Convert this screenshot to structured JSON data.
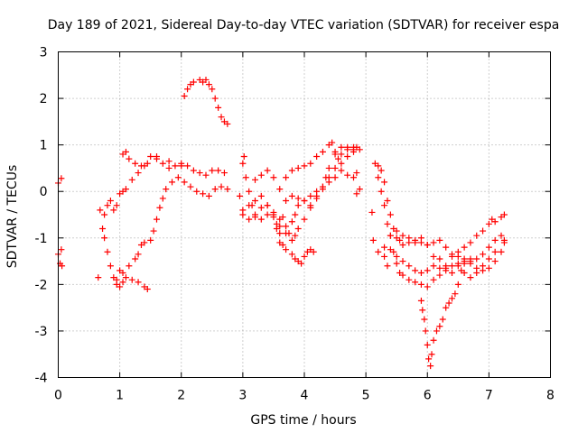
{
  "chart_data": {
    "type": "scatter",
    "title": "Day 189 of 2021, Sidereal Day-to-day VTEC variation (SDTVAR) for receiver espa",
    "xlabel": "GPS time / hours",
    "ylabel": "SDTVAR / TECUs",
    "xlim": [
      0,
      8
    ],
    "ylim": [
      -4,
      3
    ],
    "xticks": [
      "0",
      "1",
      "2",
      "3",
      "4",
      "5",
      "6",
      "7",
      "8"
    ],
    "yticks": [
      "-4",
      "-3",
      "-2",
      "-1",
      "0",
      "1",
      "2",
      "3"
    ],
    "grid": true,
    "marker": "+",
    "color": "#ff0000",
    "series": [
      {
        "points": [
          [
            0.0,
            0.18
          ],
          [
            0.05,
            0.28
          ],
          [
            0.0,
            -1.35
          ],
          [
            0.03,
            -1.55
          ],
          [
            0.05,
            -1.25
          ],
          [
            0.06,
            -1.6
          ],
          [
            0.65,
            -1.85
          ],
          [
            0.68,
            -0.4
          ],
          [
            0.72,
            -0.8
          ],
          [
            0.75,
            -1.0
          ],
          [
            0.8,
            -1.3
          ],
          [
            0.85,
            -1.6
          ],
          [
            0.9,
            -1.85
          ],
          [
            0.95,
            -2.0
          ],
          [
            1.0,
            -2.05
          ],
          [
            1.05,
            -1.95
          ],
          [
            1.1,
            -1.85
          ],
          [
            1.2,
            -1.9
          ],
          [
            1.3,
            -1.95
          ],
          [
            1.4,
            -2.05
          ],
          [
            1.45,
            -2.1
          ],
          [
            0.75,
            -0.5
          ],
          [
            0.8,
            -0.3
          ],
          [
            0.85,
            -0.2
          ],
          [
            0.9,
            -0.4
          ],
          [
            0.95,
            -0.3
          ],
          [
            1.0,
            -0.05
          ],
          [
            1.05,
            0.0
          ],
          [
            1.1,
            0.05
          ],
          [
            1.2,
            0.25
          ],
          [
            1.3,
            0.4
          ],
          [
            1.4,
            0.55
          ],
          [
            1.5,
            0.75
          ],
          [
            1.6,
            0.75
          ],
          [
            1.7,
            0.6
          ],
          [
            1.8,
            0.5
          ],
          [
            1.9,
            0.55
          ],
          [
            2.0,
            0.6
          ],
          [
            2.1,
            0.55
          ],
          [
            2.2,
            0.45
          ],
          [
            2.3,
            0.4
          ],
          [
            2.4,
            0.35
          ],
          [
            2.5,
            0.45
          ],
          [
            2.6,
            0.45
          ],
          [
            2.7,
            0.4
          ],
          [
            1.05,
            0.8
          ],
          [
            1.1,
            0.85
          ],
          [
            1.15,
            0.7
          ],
          [
            1.25,
            0.6
          ],
          [
            1.35,
            0.55
          ],
          [
            1.45,
            0.6
          ],
          [
            1.6,
            0.7
          ],
          [
            1.8,
            0.65
          ],
          [
            2.0,
            0.55
          ],
          [
            0.95,
            -1.9
          ],
          [
            1.0,
            -1.7
          ],
          [
            1.05,
            -1.75
          ],
          [
            1.15,
            -1.6
          ],
          [
            1.25,
            -1.45
          ],
          [
            1.3,
            -1.35
          ],
          [
            1.35,
            -1.15
          ],
          [
            1.4,
            -1.1
          ],
          [
            1.5,
            -1.05
          ],
          [
            1.55,
            -0.85
          ],
          [
            1.6,
            -0.6
          ],
          [
            1.65,
            -0.35
          ],
          [
            1.7,
            -0.15
          ],
          [
            1.75,
            0.05
          ],
          [
            1.85,
            0.2
          ],
          [
            1.95,
            0.3
          ],
          [
            2.05,
            0.2
          ],
          [
            2.15,
            0.1
          ],
          [
            2.25,
            0.0
          ],
          [
            2.35,
            -0.05
          ],
          [
            2.45,
            -0.1
          ],
          [
            2.55,
            0.05
          ],
          [
            2.65,
            0.1
          ],
          [
            2.75,
            0.05
          ],
          [
            2.05,
            2.05
          ],
          [
            2.1,
            2.2
          ],
          [
            2.15,
            2.3
          ],
          [
            2.2,
            2.35
          ],
          [
            2.3,
            2.4
          ],
          [
            2.35,
            2.35
          ],
          [
            2.4,
            2.4
          ],
          [
            2.45,
            2.3
          ],
          [
            2.5,
            2.2
          ],
          [
            2.55,
            2.0
          ],
          [
            2.6,
            1.8
          ],
          [
            2.65,
            1.6
          ],
          [
            2.7,
            1.5
          ],
          [
            2.75,
            1.45
          ],
          [
            2.95,
            -0.1
          ],
          [
            3.0,
            0.6
          ],
          [
            3.02,
            0.75
          ],
          [
            3.05,
            0.3
          ],
          [
            3.1,
            0.0
          ],
          [
            3.15,
            -0.3
          ],
          [
            3.2,
            -0.55
          ],
          [
            3.3,
            -0.6
          ],
          [
            3.4,
            -0.5
          ],
          [
            3.5,
            -0.55
          ],
          [
            3.55,
            -0.8
          ],
          [
            3.6,
            -1.1
          ],
          [
            3.65,
            -1.15
          ],
          [
            3.7,
            -1.25
          ],
          [
            3.8,
            -1.35
          ],
          [
            3.85,
            -1.45
          ],
          [
            3.9,
            -1.5
          ],
          [
            3.95,
            -1.55
          ],
          [
            4.0,
            -1.4
          ],
          [
            4.05,
            -1.3
          ],
          [
            4.1,
            -1.25
          ],
          [
            4.15,
            -1.3
          ],
          [
            3.0,
            -0.4
          ],
          [
            3.1,
            -0.3
          ],
          [
            3.2,
            -0.2
          ],
          [
            3.3,
            -0.1
          ],
          [
            3.4,
            -0.3
          ],
          [
            3.5,
            -0.5
          ],
          [
            3.6,
            -0.75
          ],
          [
            3.7,
            -0.9
          ],
          [
            3.8,
            -0.65
          ],
          [
            3.85,
            -0.5
          ],
          [
            3.9,
            -0.3
          ],
          [
            4.0,
            -0.2
          ],
          [
            4.1,
            -0.1
          ],
          [
            4.2,
            0.0
          ],
          [
            4.3,
            0.1
          ],
          [
            4.4,
            0.3
          ],
          [
            4.5,
            0.5
          ],
          [
            4.6,
            0.6
          ],
          [
            4.7,
            0.75
          ],
          [
            4.8,
            0.9
          ],
          [
            4.85,
            0.95
          ],
          [
            3.0,
            -0.5
          ],
          [
            3.1,
            -0.6
          ],
          [
            3.2,
            -0.5
          ],
          [
            3.3,
            -0.35
          ],
          [
            3.4,
            -0.3
          ],
          [
            3.5,
            -0.45
          ],
          [
            3.6,
            -0.6
          ],
          [
            3.7,
            -0.75
          ],
          [
            3.75,
            -0.9
          ],
          [
            3.8,
            -1.05
          ],
          [
            3.85,
            -0.95
          ],
          [
            3.9,
            -0.8
          ],
          [
            4.0,
            -0.6
          ],
          [
            4.1,
            -0.35
          ],
          [
            4.2,
            -0.1
          ],
          [
            4.3,
            0.1
          ],
          [
            4.35,
            0.3
          ],
          [
            4.4,
            0.5
          ],
          [
            4.5,
            0.8
          ],
          [
            4.6,
            0.95
          ],
          [
            4.7,
            0.95
          ],
          [
            4.8,
            0.85
          ],
          [
            4.85,
            0.4
          ],
          [
            4.9,
            0.05
          ],
          [
            4.85,
            -0.05
          ],
          [
            3.2,
            0.25
          ],
          [
            3.3,
            0.35
          ],
          [
            3.4,
            0.45
          ],
          [
            3.5,
            0.3
          ],
          [
            3.6,
            0.05
          ],
          [
            3.7,
            0.3
          ],
          [
            3.8,
            0.45
          ],
          [
            3.9,
            0.5
          ],
          [
            4.0,
            0.55
          ],
          [
            4.1,
            0.6
          ],
          [
            4.2,
            0.75
          ],
          [
            4.3,
            0.85
          ],
          [
            4.4,
            1.0
          ],
          [
            4.45,
            1.05
          ],
          [
            4.5,
            0.85
          ],
          [
            4.55,
            0.7
          ],
          [
            4.6,
            0.8
          ],
          [
            4.7,
            0.9
          ],
          [
            4.8,
            0.95
          ],
          [
            4.9,
            0.9
          ],
          [
            3.55,
            -0.7
          ],
          [
            3.6,
            -0.9
          ],
          [
            3.65,
            -0.55
          ],
          [
            3.7,
            -0.2
          ],
          [
            3.8,
            -0.1
          ],
          [
            3.9,
            -0.15
          ],
          [
            4.0,
            -0.2
          ],
          [
            4.1,
            -0.3
          ],
          [
            4.2,
            -0.15
          ],
          [
            4.3,
            0.05
          ],
          [
            4.4,
            0.2
          ],
          [
            4.5,
            0.3
          ],
          [
            4.6,
            0.45
          ],
          [
            4.7,
            0.35
          ],
          [
            4.8,
            0.3
          ],
          [
            5.1,
            -0.45
          ],
          [
            5.12,
            -1.05
          ],
          [
            5.15,
            0.6
          ],
          [
            5.2,
            0.55
          ],
          [
            5.25,
            0.45
          ],
          [
            5.3,
            0.2
          ],
          [
            5.35,
            -0.2
          ],
          [
            5.4,
            -0.5
          ],
          [
            5.45,
            -0.8
          ],
          [
            5.5,
            -1.0
          ],
          [
            5.55,
            -1.05
          ],
          [
            5.6,
            -1.15
          ],
          [
            5.7,
            -1.1
          ],
          [
            5.8,
            -1.05
          ],
          [
            5.9,
            -1.1
          ],
          [
            6.0,
            -1.15
          ],
          [
            6.1,
            -1.1
          ],
          [
            6.2,
            -1.05
          ],
          [
            6.3,
            -1.2
          ],
          [
            6.4,
            -1.35
          ],
          [
            6.5,
            -1.4
          ],
          [
            6.6,
            -1.45
          ],
          [
            6.7,
            -1.5
          ],
          [
            6.8,
            -1.45
          ],
          [
            6.9,
            -1.35
          ],
          [
            7.0,
            -1.2
          ],
          [
            7.1,
            -1.05
          ],
          [
            7.2,
            -0.95
          ],
          [
            7.25,
            -1.05
          ],
          [
            5.2,
            0.3
          ],
          [
            5.25,
            0.0
          ],
          [
            5.3,
            -0.3
          ],
          [
            5.35,
            -0.7
          ],
          [
            5.4,
            -0.95
          ],
          [
            5.45,
            -1.3
          ],
          [
            5.5,
            -1.55
          ],
          [
            5.55,
            -1.75
          ],
          [
            5.6,
            -1.8
          ],
          [
            5.7,
            -1.9
          ],
          [
            5.8,
            -1.95
          ],
          [
            5.9,
            -2.0
          ],
          [
            6.0,
            -2.05
          ],
          [
            6.1,
            -1.9
          ],
          [
            6.2,
            -1.8
          ],
          [
            6.3,
            -1.6
          ],
          [
            6.4,
            -1.4
          ],
          [
            6.5,
            -1.3
          ],
          [
            6.6,
            -1.2
          ],
          [
            6.7,
            -1.1
          ],
          [
            6.8,
            -0.95
          ],
          [
            6.9,
            -0.85
          ],
          [
            7.0,
            -0.7
          ],
          [
            7.05,
            -0.6
          ],
          [
            7.1,
            -0.65
          ],
          [
            7.2,
            -0.55
          ],
          [
            7.25,
            -0.5
          ],
          [
            5.2,
            -1.3
          ],
          [
            5.3,
            -1.2
          ],
          [
            5.4,
            -0.95
          ],
          [
            5.5,
            -0.85
          ],
          [
            5.6,
            -0.95
          ],
          [
            5.7,
            -1.0
          ],
          [
            5.8,
            -1.1
          ],
          [
            5.9,
            -1.0
          ],
          [
            6.0,
            -1.15
          ],
          [
            6.1,
            -1.4
          ],
          [
            6.2,
            -1.45
          ],
          [
            6.3,
            -1.65
          ],
          [
            6.4,
            -1.75
          ],
          [
            6.5,
            -1.6
          ],
          [
            6.6,
            -1.5
          ],
          [
            6.7,
            -1.55
          ],
          [
            6.8,
            -1.65
          ],
          [
            6.9,
            -1.7
          ],
          [
            7.0,
            -1.65
          ],
          [
            7.1,
            -1.5
          ],
          [
            7.2,
            -1.3
          ],
          [
            7.25,
            -1.1
          ],
          [
            5.3,
            -1.4
          ],
          [
            5.35,
            -1.6
          ],
          [
            5.4,
            -1.25
          ],
          [
            5.5,
            -1.4
          ],
          [
            5.6,
            -1.5
          ],
          [
            5.7,
            -1.6
          ],
          [
            5.8,
            -1.7
          ],
          [
            5.9,
            -1.75
          ],
          [
            6.0,
            -1.7
          ],
          [
            6.1,
            -1.6
          ],
          [
            6.2,
            -1.65
          ],
          [
            6.3,
            -1.7
          ],
          [
            6.4,
            -1.6
          ],
          [
            6.5,
            -1.55
          ],
          [
            6.6,
            -1.75
          ],
          [
            6.7,
            -1.85
          ],
          [
            6.8,
            -1.75
          ],
          [
            6.9,
            -1.6
          ],
          [
            7.0,
            -1.45
          ],
          [
            7.1,
            -1.3
          ],
          [
            5.9,
            -2.35
          ],
          [
            5.92,
            -2.55
          ],
          [
            5.95,
            -2.75
          ],
          [
            5.97,
            -3.0
          ],
          [
            6.0,
            -3.3
          ],
          [
            6.02,
            -3.6
          ],
          [
            6.05,
            -3.75
          ],
          [
            6.07,
            -3.5
          ],
          [
            6.1,
            -3.2
          ],
          [
            6.15,
            -3.0
          ],
          [
            6.2,
            -2.9
          ],
          [
            6.25,
            -2.75
          ],
          [
            6.3,
            -2.5
          ],
          [
            6.35,
            -2.4
          ],
          [
            6.4,
            -2.3
          ],
          [
            6.45,
            -2.2
          ],
          [
            6.5,
            -2.0
          ],
          [
            6.55,
            -1.7
          ],
          [
            6.6,
            -1.55
          ],
          [
            6.7,
            -1.45
          ]
        ]
      }
    ]
  }
}
